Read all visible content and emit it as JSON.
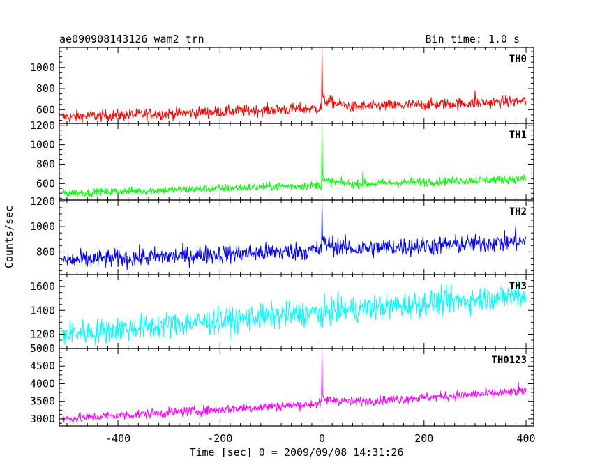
{
  "header": {
    "title": "ae090908143126_wam2_trn",
    "bin_time": "Bin time: 1.0 s"
  },
  "axes": {
    "xlabel": "Time [sec] 0 = 2009/09/08 14:31:26",
    "ylabel": "Counts/sec",
    "xlim": [
      -515,
      415
    ],
    "xticks": [
      -400,
      -200,
      0,
      200,
      400
    ]
  },
  "chart_data": {
    "type": "line",
    "x_range": [
      -510,
      400
    ],
    "bin_time_s": 1.0,
    "grid": false,
    "series": [
      {
        "name": "TH0",
        "color": "#ff0000",
        "ylim": [
          470,
          1190
        ],
        "yticks": [
          600,
          800,
          1000
        ],
        "base_start": 530,
        "base_end": 680,
        "noise": 28,
        "peak": 1180,
        "post_bump": 80,
        "extra_spike_x": 300,
        "extra_spike_val": 780
      },
      {
        "name": "TH1",
        "color": "#00ff00",
        "ylim": [
          430,
          1220
        ],
        "yticks": [
          600,
          800,
          1000,
          1200
        ],
        "base_start": 500,
        "base_end": 650,
        "noise": 22,
        "peak": 1210,
        "post_bump": 45,
        "extra_spike_x": 80,
        "extra_spike_val": 720
      },
      {
        "name": "TH2",
        "color": "#0000ff",
        "ylim": [
          620,
          1210
        ],
        "yticks": [
          800,
          1000,
          1200
        ],
        "base_start": 730,
        "base_end": 880,
        "noise": 38,
        "peak": 1200,
        "post_bump": 60,
        "extra_spike_x": 380,
        "extra_spike_val": 1010
      },
      {
        "name": "TH3",
        "color": "#00ffff",
        "ylim": [
          1080,
          1700
        ],
        "yticks": [
          1200,
          1400,
          1600
        ],
        "base_start": 1200,
        "base_end": 1530,
        "noise": 55,
        "peak": 1360,
        "post_bump": 0,
        "extra_spike_x": 385,
        "extra_spike_val": 1660
      },
      {
        "name": "TH0123",
        "color": "#ff00ff",
        "ylim": [
          2800,
          5000
        ],
        "yticks": [
          3000,
          3500,
          4000,
          4500,
          5000
        ],
        "base_start": 3000,
        "base_end": 3780,
        "noise": 70,
        "peak": 4980,
        "post_bump": 120,
        "extra_spike_x": 385,
        "extra_spike_val": 4050
      }
    ]
  }
}
